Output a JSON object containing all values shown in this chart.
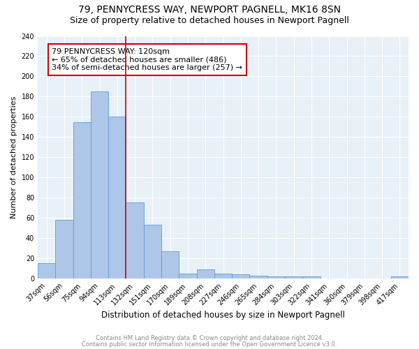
{
  "title": "79, PENNYCRESS WAY, NEWPORT PAGNELL, MK16 8SN",
  "subtitle": "Size of property relative to detached houses in Newport Pagnell",
  "xlabel": "Distribution of detached houses by size in Newport Pagnell",
  "ylabel": "Number of detached properties",
  "footnote1": "Contains HM Land Registry data © Crown copyright and database right 2024.",
  "footnote2": "Contains public sector information licensed under the Open Government Licence v3.0.",
  "categories": [
    "37sqm",
    "56sqm",
    "75sqm",
    "94sqm",
    "113sqm",
    "132sqm",
    "151sqm",
    "170sqm",
    "189sqm",
    "208sqm",
    "227sqm",
    "246sqm",
    "265sqm",
    "284sqm",
    "303sqm",
    "322sqm",
    "341sqm",
    "360sqm",
    "379sqm",
    "398sqm",
    "417sqm"
  ],
  "values": [
    15,
    58,
    155,
    185,
    160,
    75,
    53,
    27,
    5,
    9,
    5,
    4,
    3,
    2,
    2,
    2,
    0,
    0,
    0,
    0,
    2
  ],
  "bar_color": "#aec6e8",
  "bar_edge_color": "#5a9fd4",
  "vline_x": 4.5,
  "vline_color": "#cc0000",
  "annotation_text": "79 PENNYCRESS WAY: 120sqm\n← 65% of detached houses are smaller (486)\n34% of semi-detached houses are larger (257) →",
  "annotation_box_color": "white",
  "annotation_box_edgecolor": "#cc0000",
  "ylim": [
    0,
    240
  ],
  "yticks": [
    0,
    20,
    40,
    60,
    80,
    100,
    120,
    140,
    160,
    180,
    200,
    220,
    240
  ],
  "bg_color": "#e8f0f8",
  "fig_bg_color": "white",
  "title_fontsize": 10,
  "subtitle_fontsize": 9,
  "annotation_fontsize": 8,
  "footnote_fontsize": 6,
  "ylabel_fontsize": 8,
  "xlabel_fontsize": 8.5,
  "tick_fontsize": 7
}
